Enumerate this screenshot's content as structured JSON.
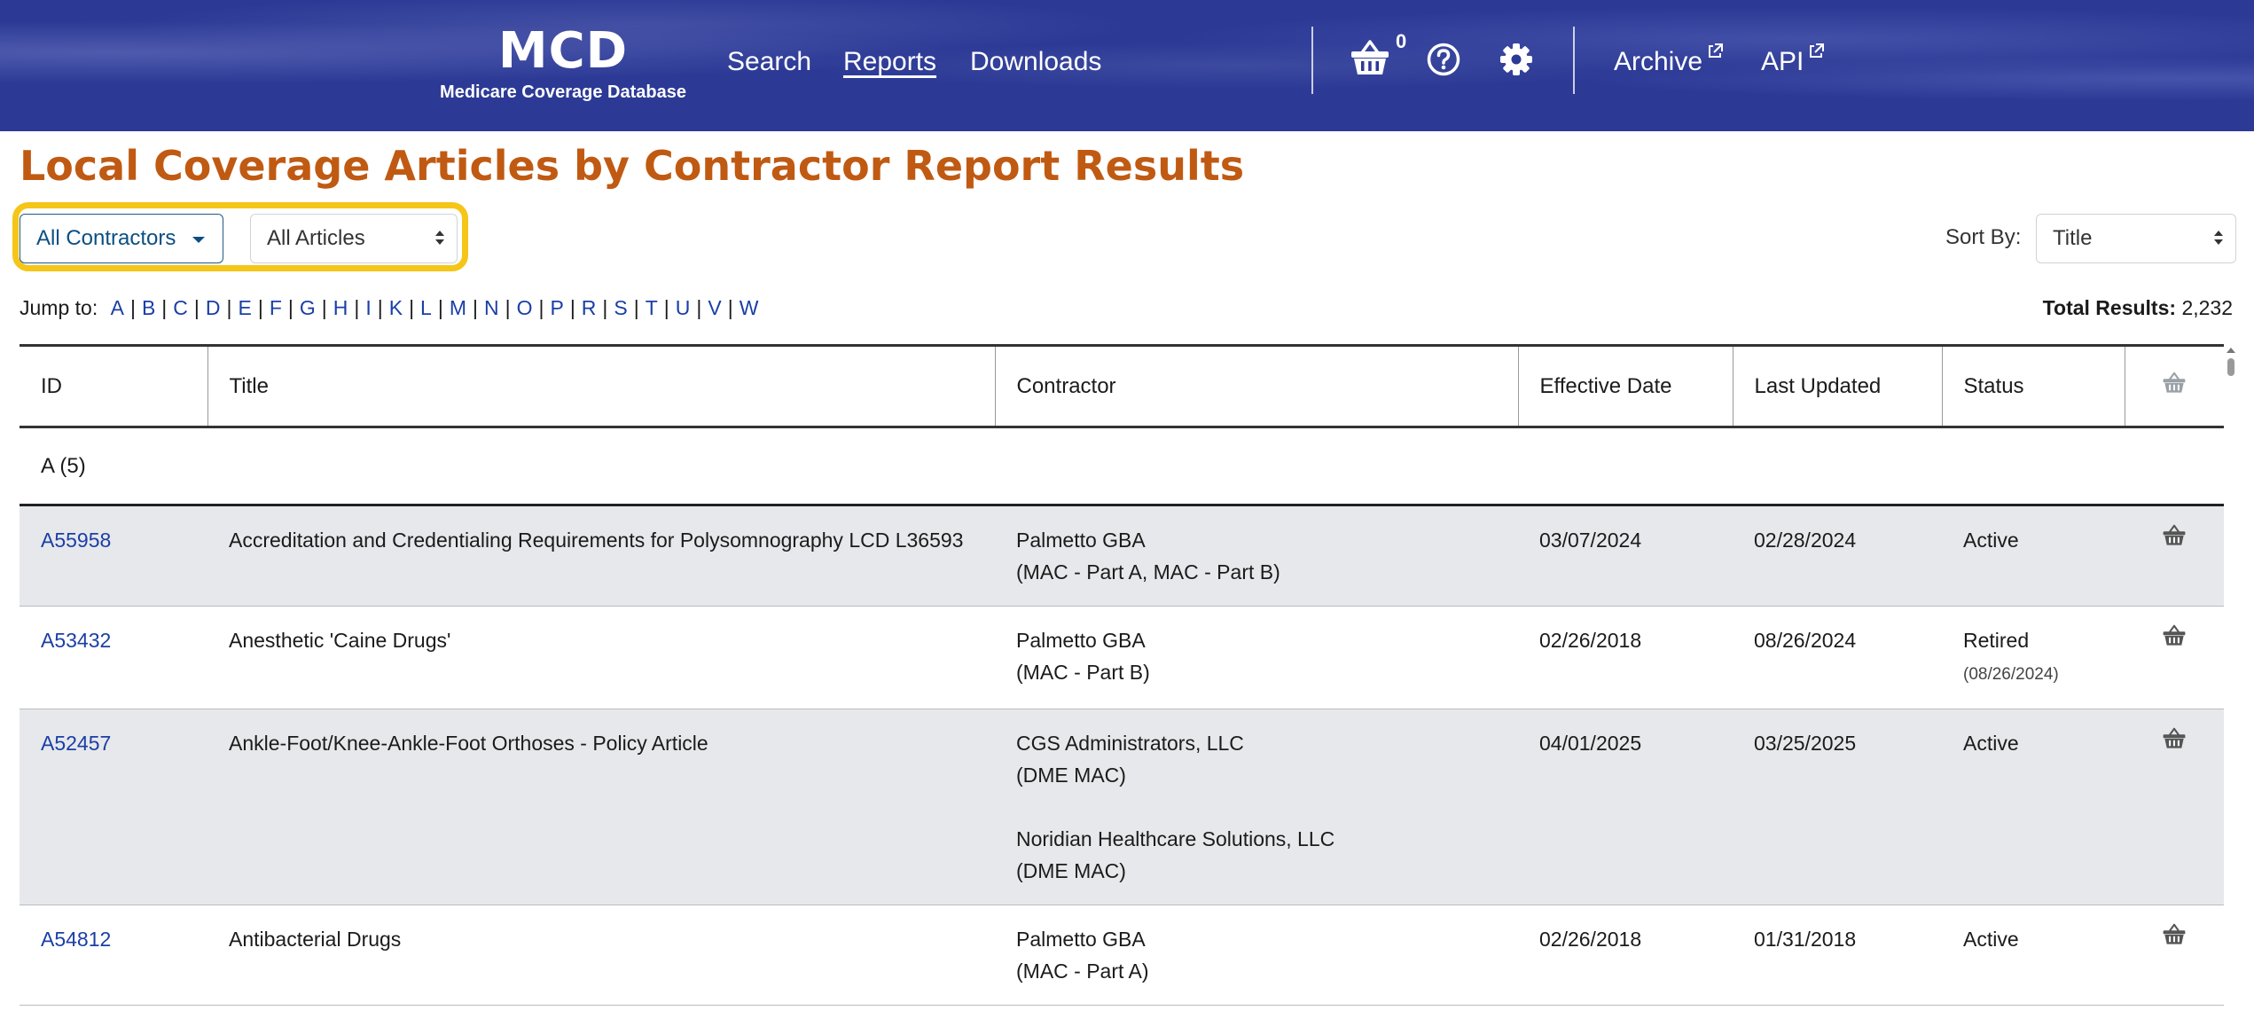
{
  "header": {
    "logo_title": "MCD",
    "logo_subtitle": "Medicare Coverage Database",
    "nav": [
      {
        "label": "Search",
        "active": false
      },
      {
        "label": "Reports",
        "active": true
      },
      {
        "label": "Downloads",
        "active": false
      }
    ],
    "cart_count": "0",
    "archive_label": "Archive",
    "api_label": "API",
    "icons": [
      "basket-icon",
      "help-icon",
      "gear-icon",
      "external-link-icon"
    ]
  },
  "page": {
    "title": "Local Coverage Articles by Contractor Report Results"
  },
  "filters": {
    "contractors_label": "All Contractors",
    "articles_label": "All Articles",
    "sort_label": "Sort By:",
    "sort_value": "Title"
  },
  "jump": {
    "label": "Jump to:",
    "letters": [
      "A",
      "B",
      "C",
      "D",
      "E",
      "F",
      "G",
      "H",
      "I",
      "K",
      "L",
      "M",
      "N",
      "O",
      "P",
      "R",
      "S",
      "T",
      "U",
      "V",
      "W"
    ]
  },
  "total": {
    "label": "Total Results:",
    "value": "2,232"
  },
  "table": {
    "headers": {
      "id": "ID",
      "title": "Title",
      "contractor": "Contractor",
      "effective": "Effective Date",
      "updated": "Last Updated",
      "status": "Status"
    },
    "group_label": "A (5)",
    "rows": [
      {
        "id": "A55958",
        "title": "Accreditation and Credentialing Requirements for Polysomnography LCD L36593",
        "contractors": [
          {
            "name": "Palmetto GBA",
            "type": "(MAC - Part A, MAC - Part B)"
          }
        ],
        "effective": "03/07/2024",
        "updated": "02/28/2024",
        "status": "Active",
        "status_date": ""
      },
      {
        "id": "A53432",
        "title": "Anesthetic 'Caine Drugs'",
        "contractors": [
          {
            "name": "Palmetto GBA",
            "type": "(MAC - Part B)"
          }
        ],
        "effective": "02/26/2018",
        "updated": "08/26/2024",
        "status": "Retired",
        "status_date": "(08/26/2024)"
      },
      {
        "id": "A52457",
        "title": "Ankle-Foot/Knee-Ankle-Foot Orthoses - Policy Article",
        "contractors": [
          {
            "name": "CGS Administrators, LLC",
            "type": "(DME MAC)"
          },
          {
            "name": "Noridian Healthcare Solutions, LLC",
            "type": "(DME MAC)"
          }
        ],
        "effective": "04/01/2025",
        "updated": "03/25/2025",
        "status": "Active",
        "status_date": ""
      },
      {
        "id": "A54812",
        "title": "Antibacterial Drugs",
        "contractors": [
          {
            "name": "Palmetto GBA",
            "type": "(MAC - Part A)"
          }
        ],
        "effective": "02/26/2018",
        "updated": "01/31/2018",
        "status": "Active",
        "status_date": ""
      }
    ]
  },
  "colors": {
    "header_bg": "#2c3a96",
    "title": "#c05a12",
    "link": "#1a3fa6",
    "highlight": "#f5c518",
    "row_shade": "#e7e8eb"
  }
}
